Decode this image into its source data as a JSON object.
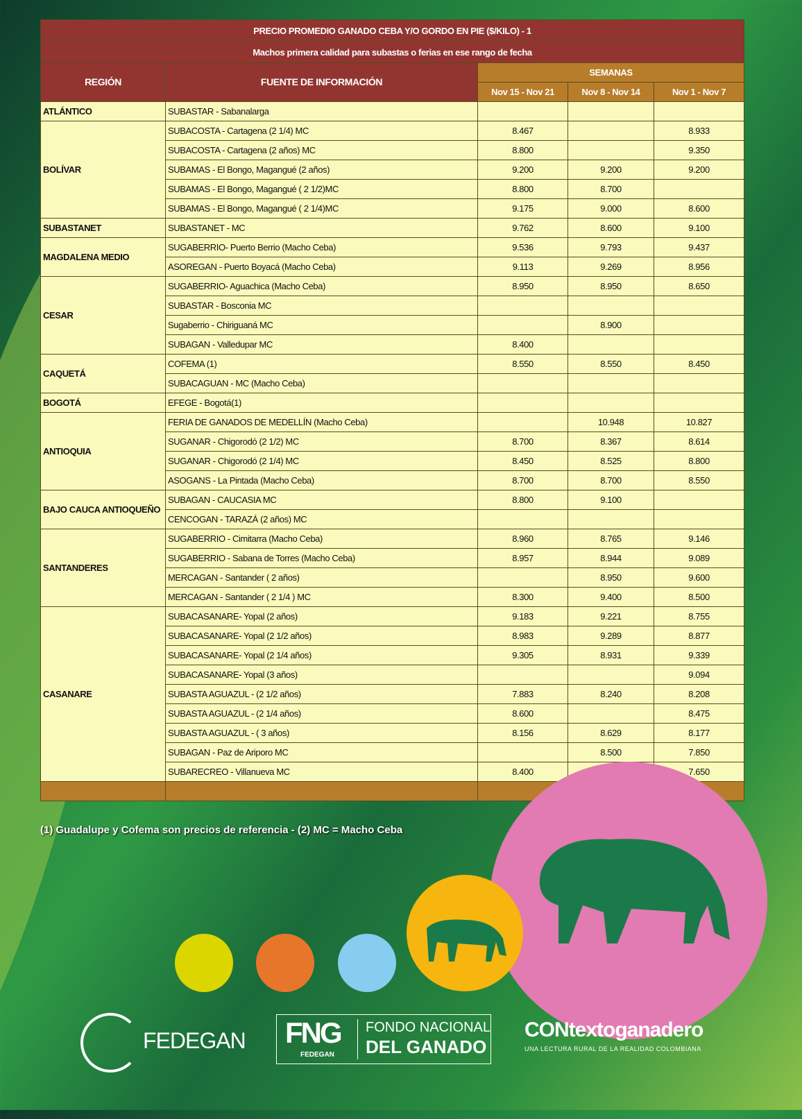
{
  "table": {
    "title": "PRECIO PROMEDIO GANADO CEBA Y/O GORDO EN PIE ($/KILO) - 1",
    "subtitle": "Machos primera calidad para subastas o ferias en ese rango de fecha",
    "headers": {
      "region": "REGIÓN",
      "source": "FUENTE DE INFORMACIÓN",
      "weeks": "SEMANAS"
    },
    "weeks": [
      "Nov 15 - Nov 21",
      "Nov 8 - Nov 14",
      "Nov 1 - Nov 7"
    ],
    "groups": [
      {
        "region": "ATLÁNTICO",
        "rows": [
          [
            "SUBASTAR - Sabanalarga",
            "",
            "",
            ""
          ]
        ]
      },
      {
        "region": "BOLÍVAR",
        "rows": [
          [
            "SUBACOSTA - Cartagena (2 1/4) MC",
            "8.467",
            "",
            "8.933"
          ],
          [
            "SUBACOSTA - Cartagena (2 años) MC",
            "8.800",
            "",
            "9.350"
          ],
          [
            "SUBAMAS - El Bongo, Magangué (2 años)",
            "9.200",
            "9.200",
            "9.200"
          ],
          [
            "SUBAMAS - El Bongo, Magangué ( 2 1/2)MC",
            "8.800",
            "8.700",
            ""
          ],
          [
            "SUBAMAS - El Bongo, Magangué ( 2 1/4)MC",
            "9.175",
            "9.000",
            "8.600"
          ]
        ]
      },
      {
        "region": "SUBASTANET",
        "rows": [
          [
            "SUBASTANET - MC",
            "9.762",
            "8.600",
            "9.100"
          ]
        ]
      },
      {
        "region": "MAGDALENA MEDIO",
        "rows": [
          [
            "SUGABERRIO- Puerto Berrio (Macho Ceba)",
            "9.536",
            "9.793",
            "9.437"
          ],
          [
            "ASOREGAN - Puerto Boyacá (Macho Ceba)",
            "9.113",
            "9.269",
            "8.956"
          ]
        ]
      },
      {
        "region": "CESAR",
        "rows": [
          [
            "SUGABERRIO- Aguachica  (Macho Ceba)",
            "8.950",
            "8.950",
            "8.650"
          ],
          [
            "SUBASTAR - Bosconia MC",
            "",
            "",
            ""
          ],
          [
            "Sugaberrio - Chiriguaná MC",
            "",
            "8.900",
            ""
          ],
          [
            "SUBAGAN - Valledupar MC",
            "8.400",
            "",
            ""
          ]
        ]
      },
      {
        "region": "CAQUETÁ",
        "rows": [
          [
            "COFEMA (1)",
            "8.550",
            "8.550",
            "8.450"
          ],
          [
            "SUBACAGUAN - MC (Macho Ceba)",
            "",
            "",
            ""
          ]
        ]
      },
      {
        "region": "BOGOTÁ",
        "rows": [
          [
            "EFEGE - Bogotá(1)",
            "",
            "",
            ""
          ]
        ]
      },
      {
        "region": "ANTIOQUIA",
        "rows": [
          [
            "FERIA DE GANADOS DE MEDELLÍN (Macho Ceba)",
            "",
            "10.948",
            "10.827"
          ],
          [
            "SUGANAR - Chigorodó (2 1/2) MC",
            "8.700",
            "8.367",
            "8.614"
          ],
          [
            "SUGANAR - Chigorodó (2 1/4) MC",
            "8.450",
            "8.525",
            "8.800"
          ],
          [
            "ASOGANS - La Pintada (Macho Ceba)",
            "8.700",
            "8.700",
            "8.550"
          ]
        ]
      },
      {
        "region": "BAJO CAUCA ANTIOQUEÑO",
        "rows": [
          [
            "SUBAGAN - CAUCASIA MC",
            "8.800",
            "9.100",
            ""
          ],
          [
            "CENCOGAN - TARAZÁ (2 años) MC",
            "",
            "",
            ""
          ]
        ]
      },
      {
        "region": "SANTANDERES",
        "rows": [
          [
            "SUGABERRIO - Cimitarra (Macho Ceba)",
            "8.960",
            "8.765",
            "9.146"
          ],
          [
            "SUGABERRIO - Sabana de Torres (Macho Ceba)",
            "8.957",
            "8.944",
            "9.089"
          ],
          [
            "MERCAGAN - Santander ( 2 años)",
            "",
            "8.950",
            "9.600"
          ],
          [
            "MERCAGAN - Santander ( 2 1/4 ) MC",
            "8.300",
            "9.400",
            "8.500"
          ]
        ]
      },
      {
        "region": "CASANARE",
        "rows": [
          [
            "SUBACASANARE- Yopal (2 años)",
            "9.183",
            "9.221",
            "8.755"
          ],
          [
            "SUBACASANARE- Yopal (2 1/2 años)",
            "8.983",
            "9.289",
            "8.877"
          ],
          [
            "SUBACASANARE- Yopal (2 1/4 años)",
            "9.305",
            "8.931",
            "9.339"
          ],
          [
            "SUBACASANARE- Yopal (3 años)",
            "",
            "",
            "9.094"
          ],
          [
            "SUBASTA AGUAZUL - (2 1/2 años)",
            "7.883",
            "8.240",
            "8.208"
          ],
          [
            "SUBASTA AGUAZUL - (2 1/4 años)",
            "8.600",
            "",
            "8.475"
          ],
          [
            "SUBASTA AGUAZUL - ( 3 años)",
            "8.156",
            "8.629",
            "8.177"
          ],
          [
            "SUBAGAN - Paz de Ariporo MC",
            "",
            "8.500",
            "7.850"
          ],
          [
            "SUBARECREO - Villanueva MC",
            "8.400",
            "8.500",
            "7.650"
          ]
        ]
      }
    ]
  },
  "note": "(1) Guadalupe y Cofema son precios de referencia  -  (2) MC = Macho Ceba",
  "logos": {
    "fedegan": "FEDEGAN",
    "fng_mark": "FNG",
    "fng_sub": "FEDEGAN",
    "fng_name1": "FONDO NACIONAL",
    "fng_name2": "DEL GANADO",
    "contexto": "CONtextoganadero",
    "contexto_tag": "UNA LECTURA RURAL DE LA REALIDAD COLOMBIANA"
  },
  "colors": {
    "title_bg": "#923530",
    "weeks_bg": "#b87d2a",
    "cell_bg": "#fbfabd",
    "circles": [
      "#dcd600",
      "#e8762a",
      "#86cdf0",
      "#f6b60f",
      "#e27bb1"
    ]
  }
}
